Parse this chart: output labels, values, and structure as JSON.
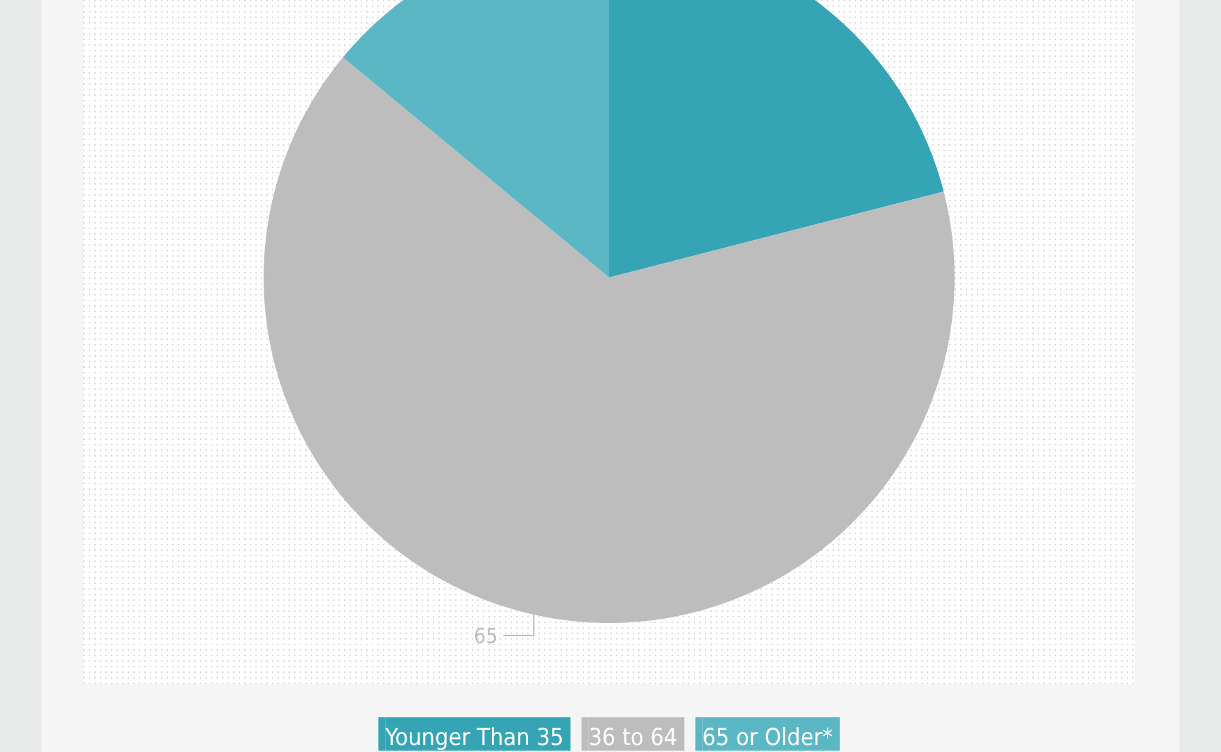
{
  "chart_data": {
    "type": "pie",
    "categories": [
      "Younger Than 35",
      "36 to 64",
      "65 or Older*"
    ],
    "values": [
      21,
      65,
      14
    ],
    "colors": [
      "#35a5b6",
      "#bdbdbd",
      "#5cb7c5"
    ],
    "value_labels": [
      null,
      "65",
      null
    ],
    "legend": "bottom"
  }
}
